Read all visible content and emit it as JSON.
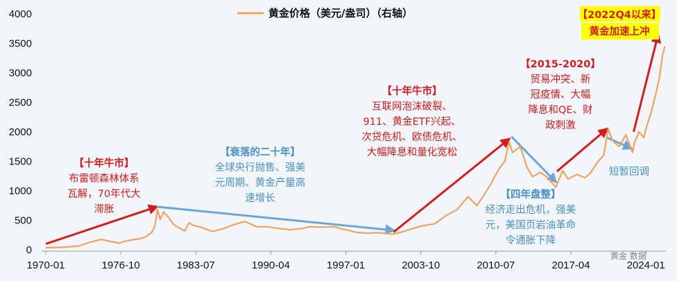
{
  "chart_data": {
    "type": "line",
    "title": "",
    "series": [
      {
        "name": "黄金价格（美元/盎司）（右轴）",
        "color": "#f0a35a",
        "points": [
          [
            1970.0,
            35
          ],
          [
            1971.0,
            40
          ],
          [
            1972.0,
            48
          ],
          [
            1973.0,
            65
          ],
          [
            1974.0,
            130
          ],
          [
            1975.0,
            175
          ],
          [
            1976.0,
            135
          ],
          [
            1976.6,
            110
          ],
          [
            1977.0,
            140
          ],
          [
            1978.0,
            175
          ],
          [
            1978.5,
            190
          ],
          [
            1979.0,
            220
          ],
          [
            1979.5,
            290
          ],
          [
            1979.8,
            390
          ],
          [
            1980.05,
            680
          ],
          [
            1980.3,
            510
          ],
          [
            1980.6,
            640
          ],
          [
            1981.0,
            560
          ],
          [
            1981.5,
            430
          ],
          [
            1982.0,
            370
          ],
          [
            1982.5,
            320
          ],
          [
            1982.9,
            460
          ],
          [
            1983.2,
            420
          ],
          [
            1984.0,
            380
          ],
          [
            1985.0,
            310
          ],
          [
            1986.0,
            360
          ],
          [
            1987.0,
            430
          ],
          [
            1987.9,
            480
          ],
          [
            1988.5,
            430
          ],
          [
            1989.0,
            390
          ],
          [
            1990.0,
            390
          ],
          [
            1991.0,
            360
          ],
          [
            1992.0,
            340
          ],
          [
            1993.0,
            360
          ],
          [
            1993.7,
            390
          ],
          [
            1995.0,
            385
          ],
          [
            1996.0,
            390
          ],
          [
            1996.7,
            350
          ],
          [
            1997.0,
            340
          ],
          [
            1998.0,
            295
          ],
          [
            1999.0,
            280
          ],
          [
            1999.8,
            290
          ],
          [
            2000.5,
            280
          ],
          [
            2001.2,
            262
          ],
          [
            2002.0,
            300
          ],
          [
            2003.0,
            360
          ],
          [
            2004.0,
            410
          ],
          [
            2005.0,
            440
          ],
          [
            2006.0,
            580
          ],
          [
            2007.0,
            680
          ],
          [
            2008.0,
            900
          ],
          [
            2008.8,
            750
          ],
          [
            2009.5,
            950
          ],
          [
            2010.0,
            1100
          ],
          [
            2010.8,
            1380
          ],
          [
            2011.3,
            1500
          ],
          [
            2011.7,
            1830
          ],
          [
            2012.0,
            1650
          ],
          [
            2012.7,
            1750
          ],
          [
            2013.3,
            1400
          ],
          [
            2013.8,
            1240
          ],
          [
            2014.5,
            1310
          ],
          [
            2015.0,
            1250
          ],
          [
            2015.9,
            1060
          ],
          [
            2016.5,
            1340
          ],
          [
            2017.0,
            1200
          ],
          [
            2017.8,
            1280
          ],
          [
            2018.5,
            1220
          ],
          [
            2019.0,
            1300
          ],
          [
            2019.7,
            1500
          ],
          [
            2020.2,
            1600
          ],
          [
            2020.6,
            2050
          ],
          [
            2021.0,
            1850
          ],
          [
            2021.6,
            1750
          ],
          [
            2022.2,
            1950
          ],
          [
            2022.8,
            1650
          ],
          [
            2023.0,
            1830
          ],
          [
            2023.4,
            2000
          ],
          [
            2023.8,
            1900
          ],
          [
            2024.0,
            2050
          ],
          [
            2024.5,
            2350
          ],
          [
            2024.9,
            2650
          ],
          [
            2025.2,
            2900
          ],
          [
            2025.5,
            3300
          ],
          [
            2025.7,
            3450
          ]
        ]
      }
    ],
    "x_ticks": [
      "1970-01",
      "1976-10",
      "1983-07",
      "1990-04",
      "1997-01",
      "2003-10",
      "2010-07",
      "2017-04",
      "2024-01"
    ],
    "y_ticks": [
      "0",
      "500",
      "1000",
      "1500",
      "2000",
      "2500",
      "3000",
      "3500",
      "4000"
    ],
    "ylim": [
      0,
      4000
    ],
    "xlim": [
      1970.0,
      2025.8
    ],
    "grid": false,
    "legend": {
      "position": "top-center",
      "label": "黄金价格（美元/盎司）（右轴）"
    },
    "annotations": [
      {
        "id": "a1",
        "color": "red",
        "lines": [
          "【十年牛市】",
          "布雷顿森林体系",
          "瓦解，70年代大",
          "滞胀"
        ]
      },
      {
        "id": "a2",
        "color": "blue",
        "lines": [
          "【衰落的二十年】",
          "全球央行抛售、强美",
          "元周期、黄金产量高",
          "速增长"
        ]
      },
      {
        "id": "a3",
        "color": "red",
        "lines": [
          "【十年牛市】",
          "互联网泡沫破裂、",
          "911、黄金ETF兴起、",
          "次贷危机、欧债危机、",
          "大幅降息和量化宽松"
        ]
      },
      {
        "id": "a4",
        "color": "blue",
        "lines": [
          "【四年盘整】",
          "经济走出危机，强美",
          "元，美国页岩油革命",
          "令通胀下降"
        ]
      },
      {
        "id": "a5",
        "color": "red",
        "lines": [
          "【2015-2020】",
          "贸易冲突、新",
          "冠疫情、大幅",
          "降息和QE、财",
          "政刺激"
        ]
      },
      {
        "id": "a6",
        "color": "blue",
        "lines": [
          "短暂回调"
        ]
      },
      {
        "id": "a7",
        "color": "red",
        "highlight": true,
        "lines": [
          "【2022Q4以来】",
          "黄金加速上冲"
        ]
      }
    ],
    "trend_arrows": [
      {
        "id": "arr1",
        "color": "red",
        "from": [
          1970.0,
          100
        ],
        "to": [
          1980.0,
          730
        ]
      },
      {
        "id": "arr2",
        "color": "blue",
        "from": [
          1980.0,
          730
        ],
        "to": [
          2001.3,
          330
        ]
      },
      {
        "id": "arr3",
        "color": "red",
        "from": [
          2001.3,
          300
        ],
        "to": [
          2011.7,
          1880
        ]
      },
      {
        "id": "arr4",
        "color": "blue",
        "from": [
          2011.9,
          1920
        ],
        "to": [
          2015.9,
          1150
        ]
      },
      {
        "id": "arr5",
        "color": "red",
        "from": [
          2016.0,
          1330
        ],
        "to": [
          2020.5,
          2050
        ]
      },
      {
        "id": "arr6",
        "color": "blue",
        "from": [
          2020.5,
          1900
        ],
        "to": [
          2022.7,
          1720
        ]
      },
      {
        "id": "arr7",
        "color": "red",
        "from": [
          2022.9,
          2000
        ],
        "to": [
          2025.1,
          3650
        ]
      }
    ],
    "colors": {
      "line": "#f0a35a",
      "red": "#d71a1a",
      "blue": "#6aa6d6"
    }
  },
  "watermark": "黄金 数据"
}
